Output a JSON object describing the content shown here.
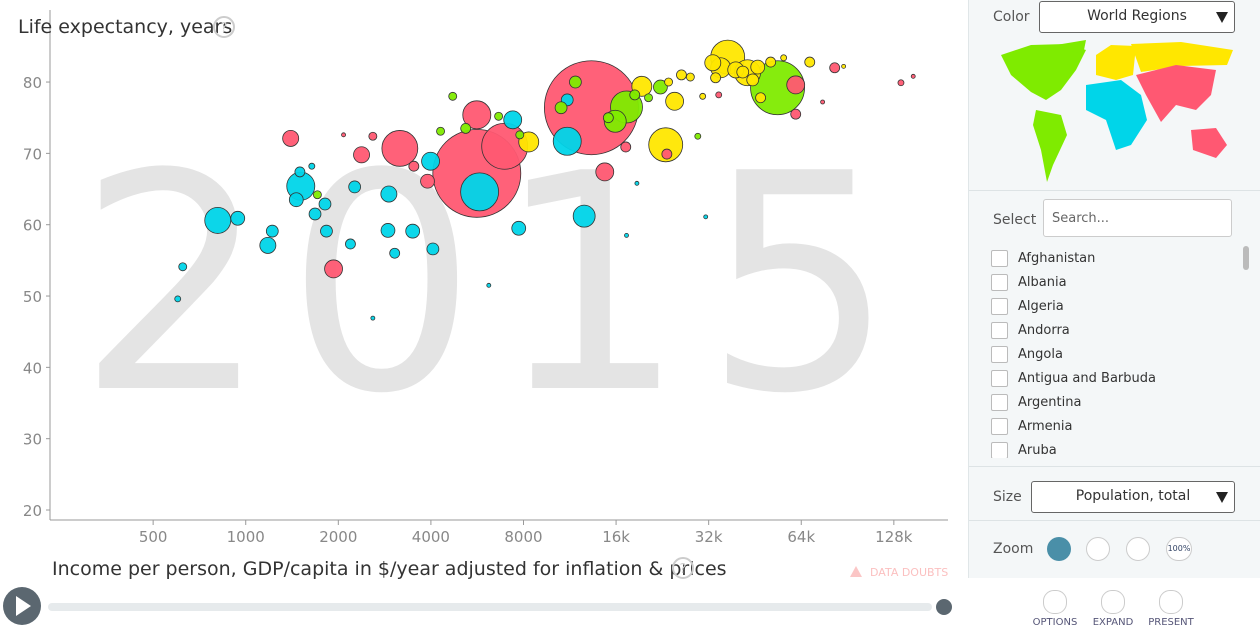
{
  "ui": {
    "color_label": "Color",
    "color_select": "World Regions",
    "select_label": "Select",
    "search_placeholder": "Search...",
    "countries": [
      "Afghanistan",
      "Albania",
      "Algeria",
      "Andorra",
      "Angola",
      "Antigua and Barbuda",
      "Argentina",
      "Armenia",
      "Aruba"
    ],
    "size_label": "Size",
    "size_select": "Population, total",
    "zoom_label": "Zoom",
    "zoom_reset": "100%",
    "buttons": [
      "OPTIONS",
      "EXPAND",
      "PRESENT"
    ],
    "data_doubts": "DATA DOUBTS"
  },
  "chart_data": {
    "type": "bubble",
    "year": "2015",
    "y_label": "Life expectancy, years",
    "x_label": "Income per person, GDP/capita in $/year adjusted for inflation & prices",
    "x_log": true,
    "xlim": [
      231,
      192000
    ],
    "ylim": [
      18.6,
      90.1
    ],
    "xticks": [
      500,
      1000,
      2000,
      4000,
      8000,
      {
        "value": 16000,
        "label": "16k"
      },
      {
        "value": 32000,
        "label": "32k"
      },
      {
        "value": 64000,
        "label": "64k"
      },
      {
        "value": 128000,
        "label": "128k"
      }
    ],
    "yticks": [
      20,
      30,
      40,
      50,
      60,
      70,
      80
    ],
    "series": [
      {
        "color": "#ff5872",
        "x": [
          13300,
          5640,
          6950,
          3170,
          5640,
          2380,
          1400,
          1930,
          3900,
          14700,
          61400,
          23400,
          17200,
          82200,
          135000,
          148000,
          75100,
          61400,
          34500,
          3520,
          2590,
          2080
        ],
        "values": [
          76.4,
          67.2,
          71.0,
          70.7,
          75.4,
          69.8,
          72.1,
          53.8,
          66.1,
          67.4,
          79.6,
          69.9,
          70.9,
          82.0,
          79.9,
          80.8,
          77.2,
          75.5,
          78.2,
          68.2,
          72.4,
          72.6
        ],
        "sizes": [
          1370000000,
          1200000000,
          328000000,
          200000000,
          122000000,
          40000000,
          40000000,
          50000000,
          30000000,
          50000000,
          50000000,
          15500000,
          15500000,
          15500000,
          5600000,
          2500000,
          2500000,
          15500000,
          5600000,
          15500000,
          10000000,
          2500000
        ]
      },
      {
        "color": "#00d5e9",
        "x": [
          5760,
          1510,
          811,
          11100,
          12600,
          2920,
          1180,
          3990,
          7380,
          11100,
          601,
          624,
          942,
          1220,
          1460,
          1810,
          1680,
          1830,
          2190,
          2260,
          2900,
          3490,
          4060,
          3050,
          2590,
          6170,
          7720,
          17300,
          31300,
          18700,
          1500,
          1640
        ],
        "values": [
          64.6,
          65.4,
          60.6,
          71.7,
          61.2,
          64.3,
          57.1,
          68.9,
          74.7,
          77.5,
          49.6,
          54.1,
          60.9,
          59.1,
          63.5,
          62.9,
          61.5,
          59.1,
          57.3,
          65.3,
          59.2,
          59.1,
          56.6,
          56.0,
          46.9,
          51.5,
          59.5,
          58.5,
          61.1,
          65.8,
          67.4,
          68.2
        ],
        "sizes": [
          224000000,
          122000000,
          105000000,
          122000000,
          75000000,
          40000000,
          40000000,
          50000000,
          50000000,
          22000000,
          5600000,
          10000000,
          30000000,
          22000000,
          30000000,
          22000000,
          22000000,
          22000000,
          15500000,
          22000000,
          30000000,
          30000000,
          22000000,
          15500000,
          2500000,
          2500000,
          30000000,
          2500000,
          2500000,
          2500000,
          15500000,
          5600000
        ]
      },
      {
        "color": "#7feb00",
        "x": [
          53600,
          17300,
          15900,
          11800,
          10600,
          15100,
          18400,
          20400,
          4710,
          4300,
          5190,
          6640,
          7780,
          1710,
          29500,
          22300
        ],
        "values": [
          79.2,
          76.5,
          74.5,
          80.0,
          76.4,
          75.0,
          78.2,
          77.8,
          78.0,
          73.1,
          73.5,
          75.2,
          72.6,
          64.2,
          72.4,
          79.3
        ],
        "sizes": [
          452000000,
          159000000,
          75000000,
          22000000,
          22000000,
          15500000,
          15500000,
          10000000,
          10000000,
          10000000,
          15500000,
          10000000,
          10000000,
          10000000,
          5600000,
          30000000
        ]
      },
      {
        "color": "#ffe700",
        "x": [
          23200,
          36900,
          42800,
          35000,
          39200,
          24800,
          8320,
          19400,
          33000,
          41300,
          46200,
          50900,
          30600,
          26100,
          27900,
          33700,
          47200,
          44500,
          23700,
          56100,
          68200,
          87900
        ],
        "values": [
          71.2,
          83.5,
          81.3,
          82.0,
          81.7,
          77.3,
          71.6,
          79.4,
          82.7,
          81.4,
          82.1,
          82.8,
          78.0,
          81.0,
          80.7,
          80.6,
          77.8,
          80.3,
          80.0,
          83.4,
          82.8,
          82.2
        ],
        "sizes": [
          179000000,
          179000000,
          105000000,
          62000000,
          40000000,
          50000000,
          62000000,
          62000000,
          40000000,
          22000000,
          30000000,
          15500000,
          5600000,
          15500000,
          10000000,
          15500000,
          15500000,
          22000000,
          10000000,
          5600000,
          15500000,
          2500000
        ]
      }
    ]
  }
}
